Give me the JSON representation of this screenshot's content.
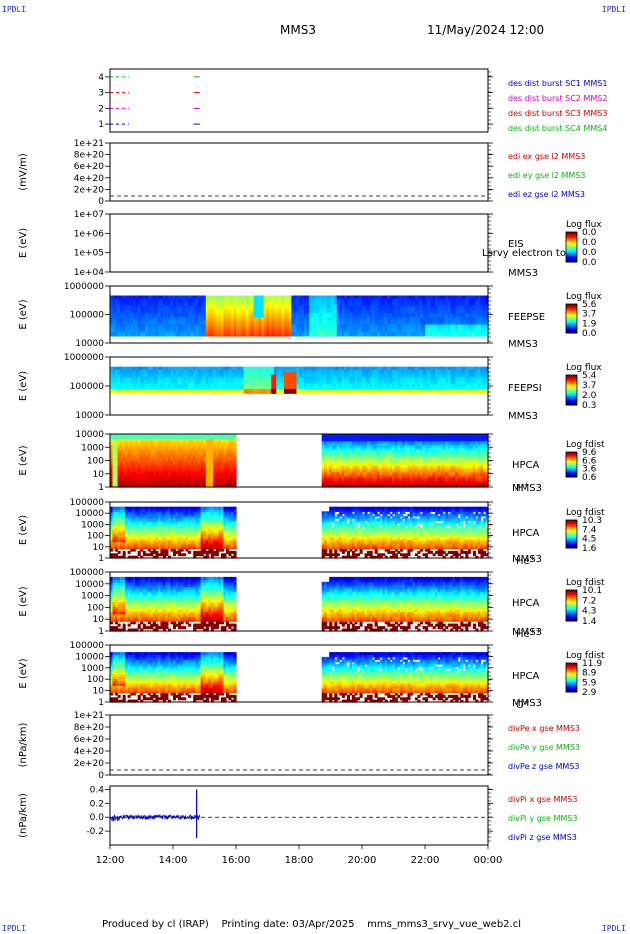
{
  "header": {
    "corner_tl": "IPDLI",
    "corner_tr": "IPDLI",
    "corner_bl": "IPDLI",
    "corner_br": "IPDLI",
    "title": "MMS3",
    "datetime": "11/May/2024 12:00",
    "footer": "Produced by cl (IRAP)    Printing date: 03/Apr/2025    mms_mms3_srvy_vue_web2.cl"
  },
  "colors": {
    "mms1": "#0000cc",
    "mms2": "#cc00cc",
    "mms3": "#cc0000",
    "mms4": "#00bb00",
    "blue": "#0000cc",
    "red": "#cc0000",
    "green": "#00bb00"
  },
  "chart_data": [
    {
      "id": "burst",
      "type": "line",
      "ylim": [
        0.5,
        4.5
      ],
      "yticks": [
        "1",
        "2",
        "3",
        "4"
      ],
      "legend": [
        "des dist burst SC1 MMS1",
        "des dist burst SC2 MMS2",
        "des dist burst SC3 MMS3",
        "des dist burst SC4 MMS4"
      ],
      "series": [
        {
          "name": "des dist burst SC1 MMS1",
          "y": 1,
          "segments": [
            [
              12.0,
              12.6
            ],
            [
              14.65,
              14.85
            ]
          ]
        },
        {
          "name": "des dist burst SC2 MMS2",
          "y": 2,
          "segments": [
            [
              12.0,
              12.6
            ],
            [
              14.65,
              14.85
            ]
          ]
        },
        {
          "name": "des dist burst SC3 MMS3",
          "y": 3,
          "segments": [
            [
              12.0,
              12.6
            ],
            [
              14.65,
              14.85
            ]
          ]
        },
        {
          "name": "des dist burst SC4 MMS4",
          "y": 4,
          "segments": [
            [
              12.0,
              12.6
            ],
            [
              14.65,
              14.85
            ]
          ]
        }
      ]
    },
    {
      "id": "edi",
      "type": "line",
      "ylabel": "(mV/m)",
      "yticks": [
        "0",
        "2e+20",
        "4e+20",
        "6e+20",
        "8e+20",
        "1e+21"
      ],
      "legend": [
        "edi ex gse l2 MMS3",
        "edi ey gse l2 MMS3",
        "edi ez gse l2 MMS3"
      ],
      "zero_line": true
    },
    {
      "id": "eis",
      "type": "heatmap",
      "ylabel": "E (eV)",
      "yticks": [
        "1e+04",
        "1e+05",
        "1e+06",
        "1e+07"
      ],
      "label_lines": [
        "EIS",
        "MMS3"
      ],
      "overlay_text": "Lsrvy electron to",
      "cb_title": "Log flux",
      "cb_ticks": [
        "0.0",
        "0.0",
        "0.0",
        "0.0"
      ]
    },
    {
      "id": "feepse",
      "type": "heatmap",
      "ylabel": "E (eV)",
      "yticks": [
        "10000",
        "100000",
        "1000000"
      ],
      "label_lines": [
        "FEEPSE",
        "MMS3"
      ],
      "cb_title": "Log flux",
      "cb_ticks": [
        "5.6",
        "3.7",
        "1.9",
        "0.0"
      ]
    },
    {
      "id": "feepsi",
      "type": "heatmap",
      "ylabel": "E (eV)",
      "yticks": [
        "10000",
        "100000",
        "1000000"
      ],
      "label_lines": [
        "FEEPSI",
        "MMS3"
      ],
      "cb_title": "Log flux",
      "cb_ticks": [
        "5.4",
        "3.7",
        "2.0",
        "0.3"
      ]
    },
    {
      "id": "hpca_h",
      "type": "heatmap",
      "ylabel": "E (eV)",
      "yticks": [
        "1",
        "10",
        "100",
        "1000",
        "10000"
      ],
      "label_lines": [
        "HPCA",
        "MMS3"
      ],
      "species": "H",
      "species_sup": "+",
      "cb_title": "Log fdist",
      "cb_ticks": [
        "9.6",
        "6.6",
        "3.6",
        "0.6"
      ],
      "gaps": [
        [
          16.0,
          18.7
        ]
      ]
    },
    {
      "id": "hpca_he",
      "type": "heatmap",
      "ylabel": "E (eV)",
      "yticks": [
        "1",
        "10",
        "100",
        "1000",
        "10000",
        "100000"
      ],
      "label_lines": [
        "HPCA",
        "MMS3"
      ],
      "species": "He",
      "species_sup": "+",
      "cb_title": "Log fdist",
      "cb_ticks": [
        "10.3",
        "7.4",
        "4.5",
        "1.6"
      ],
      "gaps": [
        [
          16.0,
          18.7
        ]
      ]
    },
    {
      "id": "hpca_he2",
      "type": "heatmap",
      "ylabel": "E (eV)",
      "yticks": [
        "1",
        "10",
        "100",
        "1000",
        "10000",
        "100000"
      ],
      "label_lines": [
        "HPCA",
        "MMS3"
      ],
      "species": "He",
      "species_sup": "++",
      "cb_title": "Log fdist",
      "cb_ticks": [
        "10.1",
        "7.2",
        "4.3",
        "1.4"
      ],
      "gaps": [
        [
          16.0,
          18.7
        ]
      ]
    },
    {
      "id": "hpca_o",
      "type": "heatmap",
      "ylabel": "E (eV)",
      "yticks": [
        "1",
        "10",
        "100",
        "1000",
        "10000",
        "100000"
      ],
      "label_lines": [
        "HPCA",
        "MMS3"
      ],
      "species": "O",
      "species_sup": "+",
      "cb_title": "Log fdist",
      "cb_ticks": [
        "11.9",
        "8.9",
        "5.9",
        "2.9"
      ],
      "gaps": [
        [
          16.0,
          18.7
        ]
      ]
    },
    {
      "id": "divpe",
      "type": "line",
      "ylabel": "(nPa/km)",
      "yticks": [
        "0",
        "2e+20",
        "4e+20",
        "6e+20",
        "8e+20",
        "1e+21"
      ],
      "legend": [
        "divPe x gse MMS3",
        "divPe y gse MMS3",
        "divPe z gse MMS3"
      ],
      "zero_line": true
    },
    {
      "id": "divpi",
      "type": "line",
      "ylabel": "(nPa/km)",
      "ylim": [
        -0.4,
        0.45
      ],
      "yticks": [
        "-0.2",
        "0.0",
        "0.2",
        "0.4"
      ],
      "ytick_values": [
        -0.2,
        0.0,
        0.2,
        0.4
      ],
      "legend": [
        "divPi x gse MMS3",
        "divPi y gse MMS3",
        "divPi z gse MMS3"
      ],
      "zero_line": true,
      "trace_range": [
        12.0,
        14.85
      ],
      "spike_at": 14.75,
      "spike_range": [
        -0.3,
        0.4
      ]
    }
  ],
  "time_axis": {
    "range": [
      12,
      24
    ],
    "ticks": [
      {
        "v": 12,
        "label": "12:00"
      },
      {
        "v": 14,
        "label": "14:00"
      },
      {
        "v": 16,
        "label": "16:00"
      },
      {
        "v": 18,
        "label": "18:00"
      },
      {
        "v": 20,
        "label": "20:00"
      },
      {
        "v": 22,
        "label": "22:00"
      },
      {
        "v": 24,
        "label": "00:00"
      }
    ]
  }
}
